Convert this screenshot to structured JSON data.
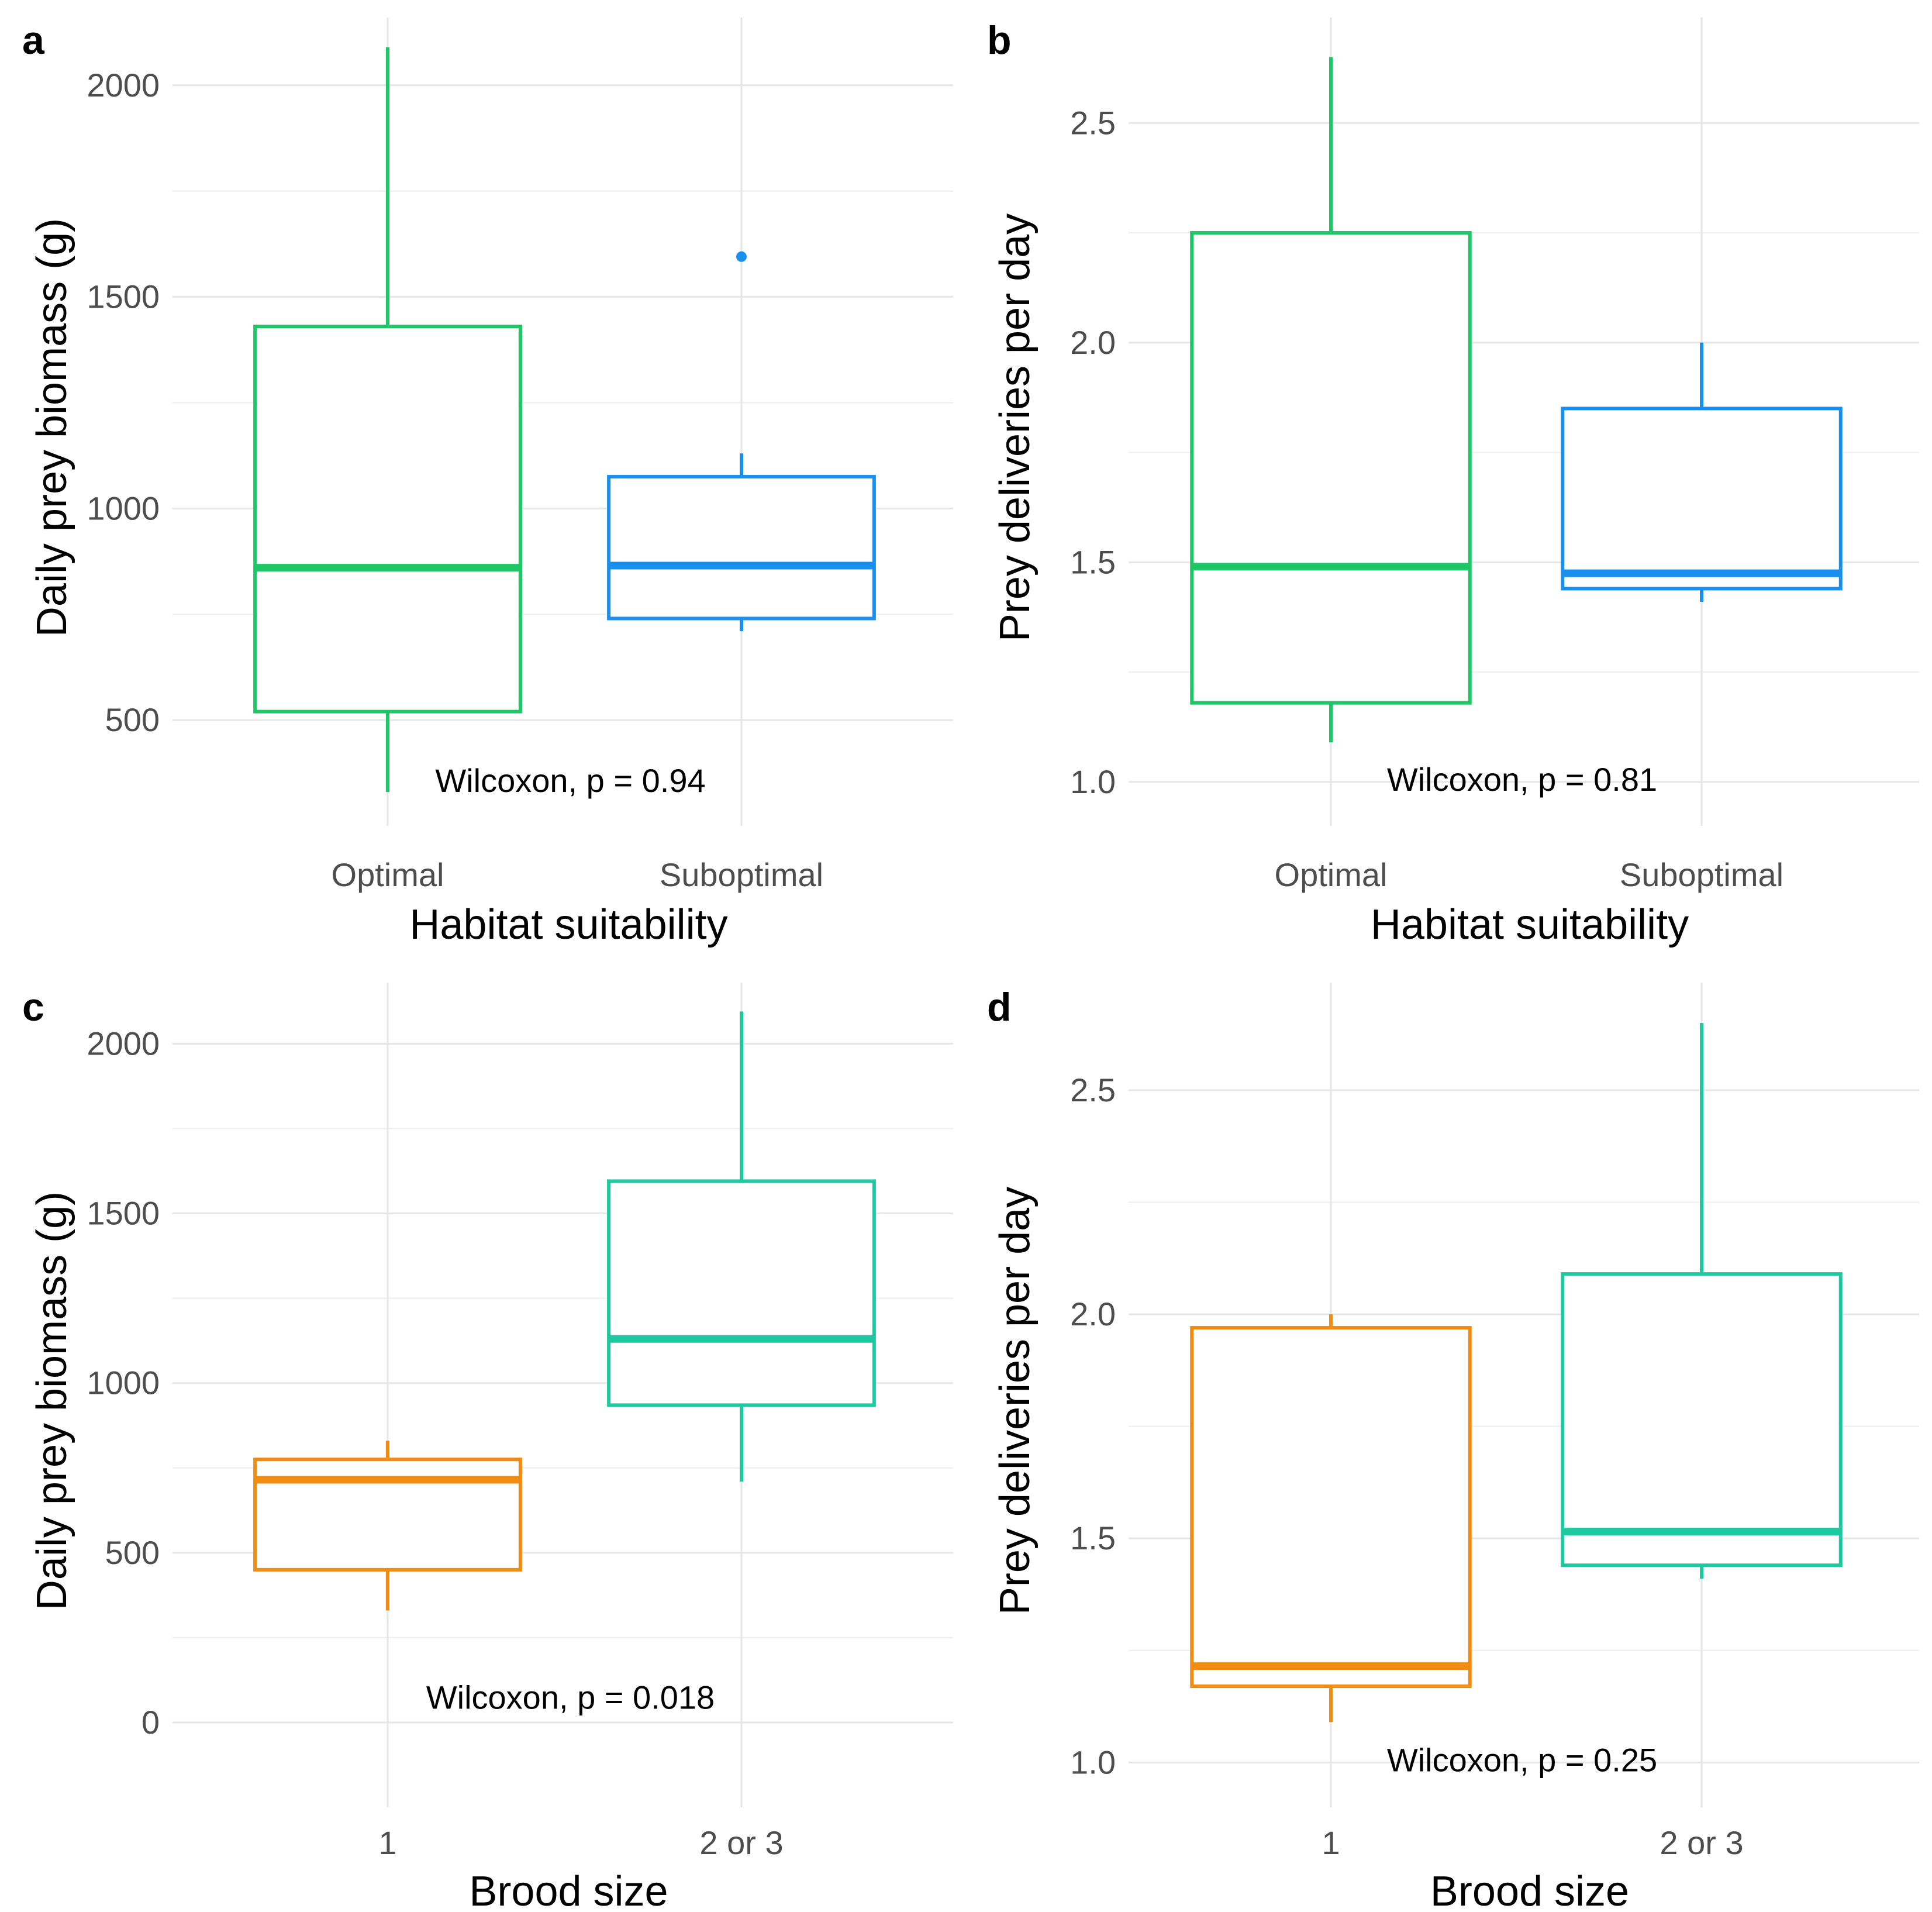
{
  "chart_data": [
    {
      "type": "boxplot",
      "tag": "a",
      "xlabel": "Habitat suitability",
      "ylabel": "Daily prey biomass (g)",
      "categories": [
        "Optimal",
        "Suboptimal"
      ],
      "yticks": [
        500,
        1000,
        1500,
        2000
      ],
      "ylim": [
        250,
        2160
      ],
      "boxes": [
        {
          "category": "Optimal",
          "color": "#1fc666",
          "whisker_low": 330,
          "q1": 520,
          "median": 860,
          "q3": 1430,
          "whisker_high": 2090,
          "outliers": []
        },
        {
          "category": "Suboptimal",
          "color": "#1a90ee",
          "whisker_low": 710,
          "q1": 740,
          "median": 865,
          "q3": 1075,
          "whisker_high": 1130,
          "outliers": [
            1595
          ]
        }
      ],
      "annotation": "Wilcoxon, p = 0.94",
      "annotation_y": 330
    },
    {
      "type": "boxplot",
      "tag": "b",
      "xlabel": "Habitat suitability",
      "ylabel": "Prey deliveries per day",
      "categories": [
        "Optimal",
        "Suboptimal"
      ],
      "yticks": [
        "1.0",
        "1.5",
        "2.0",
        "2.5"
      ],
      "ylim": [
        0.9,
        2.74
      ],
      "boxes": [
        {
          "category": "Optimal",
          "color": "#1fc666",
          "whisker_low": 1.09,
          "q1": 1.18,
          "median": 1.49,
          "q3": 2.25,
          "whisker_high": 2.65,
          "outliers": []
        },
        {
          "category": "Suboptimal",
          "color": "#1a90ee",
          "whisker_low": 1.41,
          "q1": 1.44,
          "median": 1.475,
          "q3": 1.85,
          "whisker_high": 2.0,
          "outliers": []
        }
      ],
      "annotation": "Wilcoxon, p = 0.81",
      "annotation_y": 0.98
    },
    {
      "type": "boxplot",
      "tag": "c",
      "xlabel": "Brood size",
      "ylabel": "Daily prey biomass (g)",
      "categories": [
        "1",
        "2 or 3"
      ],
      "yticks": [
        0,
        500,
        1000,
        1500,
        2000
      ],
      "ylim": [
        -250,
        2180
      ],
      "boxes": [
        {
          "category": "1",
          "color": "#f08c12",
          "whisker_low": 330,
          "q1": 450,
          "median": 715,
          "q3": 775,
          "whisker_high": 830,
          "outliers": []
        },
        {
          "category": "2 or 3",
          "color": "#1ec8a0",
          "whisker_low": 710,
          "q1": 935,
          "median": 1130,
          "q3": 1595,
          "whisker_high": 2095,
          "outliers": []
        }
      ],
      "annotation": "Wilcoxon, p = 0.018",
      "annotation_y": 40
    },
    {
      "type": "boxplot",
      "tag": "d",
      "xlabel": "Brood size",
      "ylabel": "Prey deliveries per day",
      "categories": [
        "1",
        "2 or 3"
      ],
      "yticks": [
        "1.0",
        "1.5",
        "2.0",
        "2.5"
      ],
      "ylim": [
        0.9,
        2.74
      ],
      "boxes": [
        {
          "category": "1",
          "color": "#f08c12",
          "whisker_low": 1.09,
          "q1": 1.17,
          "median": 1.215,
          "q3": 1.97,
          "whisker_high": 2.0,
          "outliers": []
        },
        {
          "category": "2 or 3",
          "color": "#1ec8a0",
          "whisker_low": 1.41,
          "q1": 1.44,
          "median": 1.515,
          "q3": 2.09,
          "whisker_high": 2.65,
          "outliers": []
        }
      ],
      "annotation": "Wilcoxon, p = 0.25",
      "annotation_y": 0.98
    }
  ]
}
